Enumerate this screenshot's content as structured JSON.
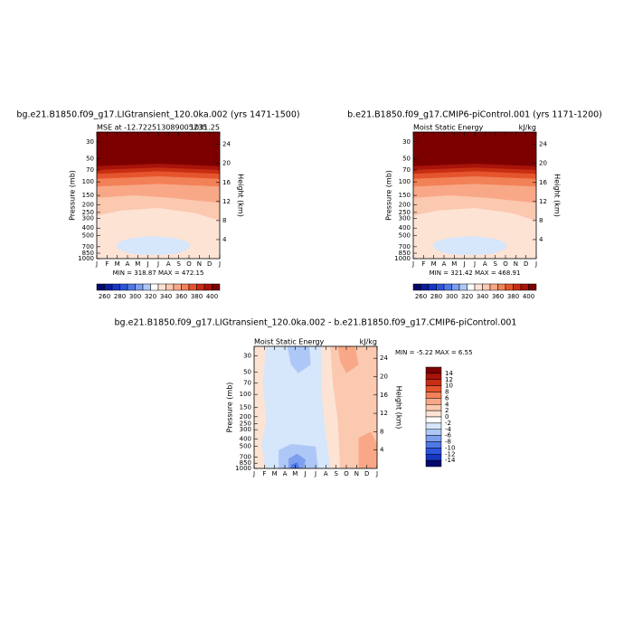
{
  "chart_data": [
    {
      "type": "contour",
      "title": "bg.e21.B1850.f09_g17.LIGtransient_120.0ka.002 (yrs 1471-1500)",
      "left_string": "MSE at -12.722513089005235",
      "right_string": "1031.25",
      "stats": "MIN = 318.87 MAX = 472.15",
      "ylabel": "Pressure (mb)",
      "y2label": "Height (km)",
      "x": [
        "J",
        "F",
        "M",
        "A",
        "M",
        "J",
        "J",
        "A",
        "S",
        "O",
        "N",
        "D",
        "J"
      ],
      "ylim": [
        1000,
        22.4
      ],
      "ylog": true,
      "yticks": [
        30,
        50,
        70,
        100,
        150,
        200,
        250,
        300,
        400,
        500,
        700,
        850,
        1000
      ],
      "y2ticks": [
        4,
        8,
        12,
        16,
        20,
        24
      ],
      "colorbar": {
        "orientation": "horizontal",
        "levels": [
          260,
          270,
          280,
          290,
          300,
          310,
          320,
          330,
          340,
          350,
          360,
          370,
          380,
          390,
          400
        ],
        "ticks": [
          260,
          280,
          300,
          320,
          340,
          360,
          380,
          400
        ],
        "colors": [
          "#03096b",
          "#0b1d9c",
          "#1736c4",
          "#2c55dc",
          "#5078e6",
          "#7d9fef",
          "#adc8f6",
          "#ffffff",
          "#fde3d3",
          "#fbc8b0",
          "#f8a886",
          "#f28158",
          "#e4552e",
          "#c82e12",
          "#a8130a",
          "#7d0000"
        ]
      }
    },
    {
      "type": "contour",
      "title": "b.e21.B1850.f09_g17.CMIP6-piControl.001 (yrs 1171-1200)",
      "left_string": "Moist Static Energy",
      "right_string": "kJ/kg",
      "stats": "MIN = 321.42 MAX = 468.91",
      "ylabel": "Pressure (mb)",
      "y2label": "Height (km)",
      "x": [
        "J",
        "F",
        "M",
        "A",
        "M",
        "J",
        "J",
        "A",
        "S",
        "O",
        "N",
        "D",
        "J"
      ],
      "ylim": [
        1000,
        22.4
      ],
      "ylog": true,
      "yticks": [
        30,
        50,
        70,
        100,
        150,
        200,
        250,
        300,
        400,
        500,
        700,
        850,
        1000
      ],
      "y2ticks": [
        4,
        8,
        12,
        16,
        20,
        24
      ],
      "colorbar": {
        "orientation": "horizontal",
        "levels": [
          260,
          270,
          280,
          290,
          300,
          310,
          320,
          330,
          340,
          350,
          360,
          370,
          380,
          390,
          400
        ],
        "ticks": [
          260,
          280,
          300,
          320,
          340,
          360,
          380,
          400
        ],
        "colors": [
          "#03096b",
          "#0b1d9c",
          "#1736c4",
          "#2c55dc",
          "#5078e6",
          "#7d9fef",
          "#adc8f6",
          "#ffffff",
          "#fde3d3",
          "#fbc8b0",
          "#f8a886",
          "#f28158",
          "#e4552e",
          "#c82e12",
          "#a8130a",
          "#7d0000"
        ]
      }
    },
    {
      "type": "contour",
      "title": "bg.e21.B1850.f09_g17.LIGtransient_120.0ka.002 - b.e21.B1850.f09_g17.CMIP6-piControl.001",
      "left_string": "Moist Static Energy",
      "right_string": "kJ/kg",
      "stats": "MIN =  -5.22 MAX =   6.55",
      "ylabel": "Pressure (mb)",
      "y2label": "Height (km)",
      "x": [
        "J",
        "F",
        "M",
        "A",
        "M",
        "J",
        "J",
        "A",
        "S",
        "O",
        "N",
        "D",
        "J"
      ],
      "ylim": [
        1000,
        22.4
      ],
      "ylog": true,
      "yticks": [
        30,
        50,
        70,
        100,
        150,
        200,
        250,
        300,
        400,
        500,
        700,
        850,
        1000
      ],
      "y2ticks": [
        4,
        8,
        12,
        16,
        20,
        24
      ],
      "colorbar": {
        "orientation": "vertical",
        "levels": [
          14,
          12,
          10,
          8,
          6,
          4,
          2,
          0,
          -2,
          -4,
          -6,
          -8,
          -10,
          -12,
          -14
        ],
        "ticks": [
          14,
          12,
          10,
          8,
          6,
          4,
          2,
          0,
          -2,
          -4,
          -6,
          -8,
          -10,
          -12,
          -14
        ],
        "colors": [
          "#7d0000",
          "#a8130a",
          "#c82e12",
          "#e4552e",
          "#f28158",
          "#f8a886",
          "#fbc8b0",
          "#fde3d3",
          "#ffffff",
          "#d6e6fb",
          "#adc8f6",
          "#7d9fef",
          "#5078e6",
          "#2c55dc",
          "#1736c4",
          "#03096b"
        ]
      }
    }
  ]
}
